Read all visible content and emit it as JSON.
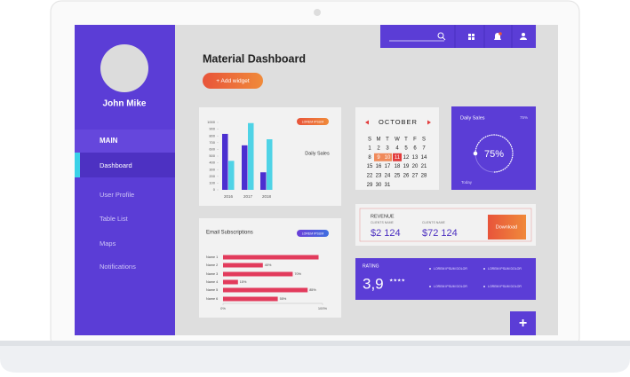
{
  "sidebar": {
    "user_name": "John Mike",
    "section": "MAIN",
    "items": [
      "Dashboard",
      "User Profile",
      "Table List",
      "Maps",
      "Notifications"
    ]
  },
  "header": {
    "title": "Material Dashboard",
    "button": "+ Add widget"
  },
  "sales_chart": {
    "type": "bar",
    "label": "Daily Sales",
    "tag": "LOREM IPSUM",
    "categories": [
      "2016",
      "2017",
      "2018"
    ],
    "series": [
      {
        "color": "#4b2fd0",
        "values": [
          830,
          660,
          260
        ]
      },
      {
        "color": "#4fd3e6",
        "values": [
          430,
          990,
          750
        ]
      }
    ],
    "ylim": [
      0,
      1000
    ],
    "yticks": [
      0,
      100,
      200,
      300,
      400,
      500,
      600,
      700,
      800,
      900,
      1000
    ]
  },
  "email_chart": {
    "type": "hbar",
    "title": "Email Subscriptions",
    "tag": "LOREM IPSUM",
    "color": "#e23b5c",
    "categories": [
      "Name 1",
      "Name 2",
      "Name 3",
      "Name 4",
      "Name 5",
      "Name 6"
    ],
    "values": [
      96,
      40,
      70,
      15,
      85,
      55
    ],
    "value_labels": [
      null,
      "40%",
      "70%",
      "15%",
      "85%",
      "55%"
    ],
    "xlim": [
      0,
      100
    ],
    "xticks": [
      {
        "value": 0,
        "label": "0%"
      },
      {
        "value": 100,
        "label": "100%"
      }
    ]
  },
  "calendar": {
    "month": "OCTOBER",
    "weekdays": [
      "S",
      "M",
      "T",
      "W",
      "T",
      "F",
      "S"
    ],
    "weeks": [
      [
        1,
        2,
        3,
        4,
        5,
        6,
        7
      ],
      [
        8,
        9,
        10,
        11,
        12,
        13,
        14
      ],
      [
        15,
        16,
        17,
        18,
        19,
        20,
        21
      ],
      [
        22,
        23,
        24,
        25,
        26,
        27,
        28
      ],
      [
        29,
        30,
        31
      ]
    ],
    "highlighted_days": [
      9,
      10
    ],
    "selected_day": 11
  },
  "daily_sales": {
    "type": "ring",
    "title": "Daily Sales",
    "value": 75,
    "value_label": "75%",
    "footer": "Today"
  },
  "revenue": {
    "title": "REVENUE",
    "items": [
      {
        "label": "CLIENTS NAME",
        "amount": "$2 124"
      },
      {
        "label": "CLIENTS NAME",
        "amount": "$72 124"
      }
    ],
    "button": "Download"
  },
  "rating": {
    "title": "RATING",
    "score": "3,9",
    "stars": "★★★★",
    "items": [
      "LOREM IPSUM DOLOR",
      "LOREM IPSUM DOLOR",
      "LOREM IPSUM DOLOR",
      "LOREM IPSUM DOLOR"
    ]
  },
  "fab": "+"
}
